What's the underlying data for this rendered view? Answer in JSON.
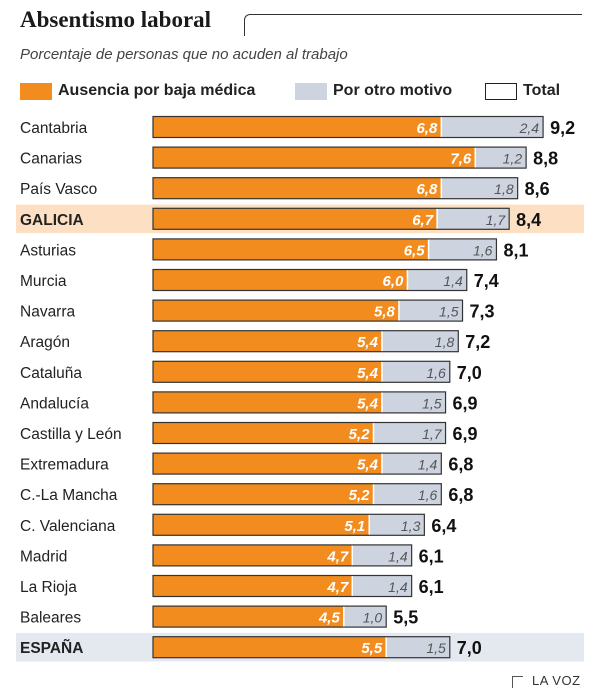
{
  "header": {
    "title": "Absentismo laboral",
    "subtitle": "Porcentaje de personas que no acuden al trabajo"
  },
  "legend": {
    "items": [
      {
        "label": "Ausencia por baja médica",
        "color": "#f28c1e"
      },
      {
        "label": "Por otro motivo",
        "color": "#cdd4e0"
      },
      {
        "label": "Total",
        "color": "#ffffff"
      }
    ]
  },
  "footer": {
    "source": "LA VOZ"
  },
  "chart_data": {
    "type": "bar",
    "orientation": "horizontal",
    "stacked": true,
    "categories": [
      "Cantabria",
      "Canarias",
      "País Vasco",
      "GALICIA",
      "Asturias",
      "Murcia",
      "Navarra",
      "Aragón",
      "Cataluña",
      "Andalucía",
      "Castilla y León",
      "Extremadura",
      "C.-La Mancha",
      "C. Valenciana",
      "Madrid",
      "La Rioja",
      "Baleares",
      "ESPAÑA"
    ],
    "series": [
      {
        "name": "Ausencia por baja médica",
        "color": "#f28c1e",
        "values": [
          6.8,
          7.6,
          6.8,
          6.7,
          6.5,
          6.0,
          5.8,
          5.4,
          5.4,
          5.4,
          5.2,
          5.4,
          5.2,
          5.1,
          4.7,
          4.7,
          4.5,
          5.5
        ]
      },
      {
        "name": "Por otro motivo",
        "color": "#cdd4e0",
        "values": [
          2.4,
          1.2,
          1.8,
          1.7,
          1.6,
          1.4,
          1.5,
          1.8,
          1.6,
          1.5,
          1.7,
          1.4,
          1.6,
          1.3,
          1.4,
          1.4,
          1.0,
          1.5
        ]
      }
    ],
    "totals": {
      "name": "Total",
      "values": [
        9.2,
        8.8,
        8.6,
        8.4,
        8.1,
        7.4,
        7.3,
        7.2,
        7.0,
        6.9,
        6.9,
        6.8,
        6.8,
        6.4,
        6.1,
        6.1,
        5.5,
        7.0
      ]
    },
    "highlighted_rows": [
      {
        "category": "GALICIA",
        "color": "#fde0c4"
      },
      {
        "category": "ESPAÑA",
        "color": "#e4e8ef"
      }
    ],
    "xlim": [
      0,
      9.2
    ],
    "grid": false,
    "legend_position": "top"
  }
}
